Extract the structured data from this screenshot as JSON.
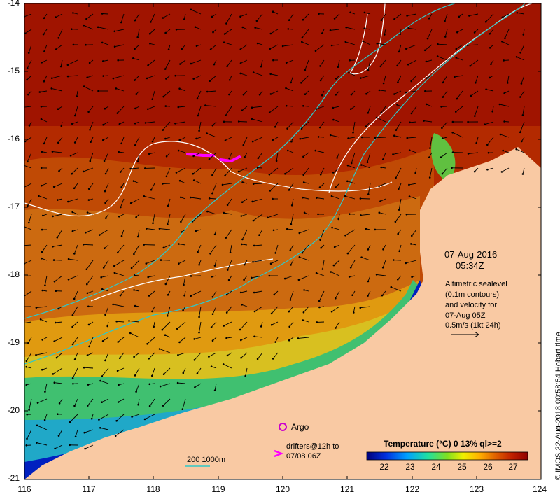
{
  "map": {
    "lon_ticks": [
      "116",
      "117",
      "118",
      "119",
      "120",
      "121",
      "122",
      "123",
      "124"
    ],
    "lat_ticks": [
      "-14",
      "-15",
      "-16",
      "-17",
      "-18",
      "-19",
      "-20",
      "-21"
    ],
    "date": "07-Aug-2016",
    "time": "05:34Z",
    "altimetry_lines": [
      "Altimetric sealevel",
      "(0.1m contours)",
      "and velocity for",
      "07-Aug 05Z",
      "0.5m/s (1kt 24h)"
    ],
    "argo_label": "Argo",
    "drifters_lines": [
      "drifters@12h to",
      "07/08 06Z"
    ],
    "depth_label": "200  1000m",
    "colorbar_title": "Temperature (°C) 0 13% ql>=2",
    "colorbar_ticks": [
      "22",
      "23",
      "24",
      "25",
      "26",
      "27"
    ],
    "credit": "© IMOS 22-Aug-2018 00:58:54 Hobart time"
  },
  "colors": {
    "land": "#f9c9a3",
    "warm": "#a81000",
    "cool": "#0000b0",
    "drifter": "#ff00ff",
    "contour_white": "#ffffff",
    "contour_cyan": "#30c8c8"
  }
}
